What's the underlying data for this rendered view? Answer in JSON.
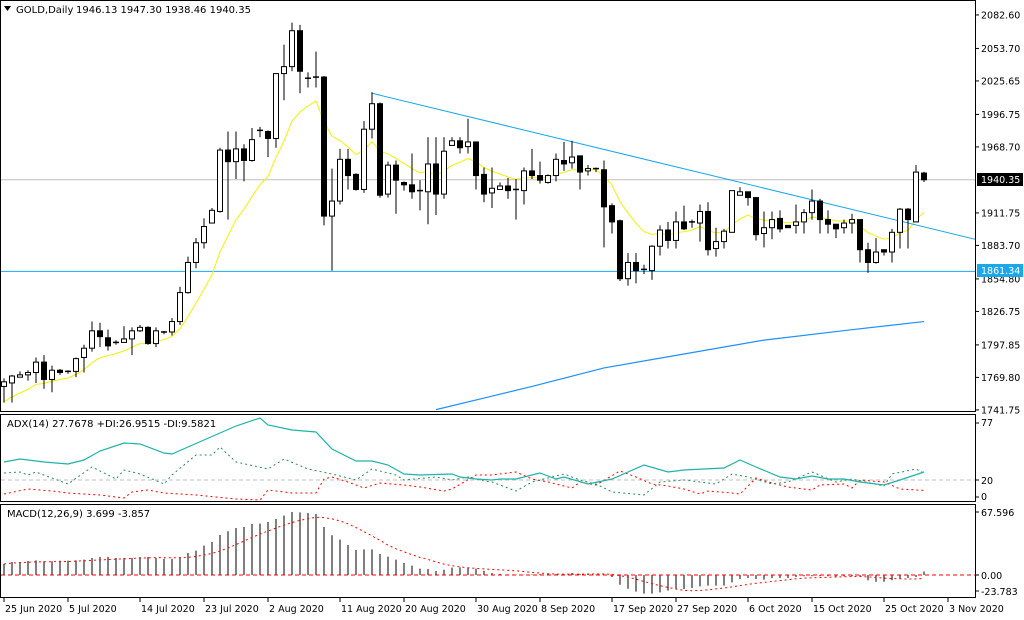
{
  "header": {
    "symbol": "GOLD,Daily",
    "ohlc": "1946.13 1947.30 1938.46 1940.35"
  },
  "colors": {
    "bull_fill": "#ffffff",
    "bear_fill": "#000000",
    "ma_fast": "#f2f200",
    "ma_slow": "#1e90ff",
    "trendline": "#1aa7ec",
    "level": "#1aa7ec",
    "bid_line": "#c0c0c0",
    "adx": "#20b2aa",
    "plus_di": "#2e8b57",
    "minus_di": "#ff0000",
    "macd_hist": "#000000",
    "macd_signal": "#ff0000"
  },
  "price_axis": {
    "labels": [
      "2082.60",
      "2053.70",
      "2025.65",
      "1996.75",
      "1968.70",
      "1911.75",
      "1883.70",
      "1854.80",
      "1826.75",
      "1797.85",
      "1769.80",
      "1741.75"
    ]
  },
  "price_tags": {
    "bid": "1940.35",
    "level": "1861.34"
  },
  "date_axis": [
    {
      "label": "25 Jun 2020",
      "bar": 0
    },
    {
      "label": "5 Jul 2020",
      "bar": 8
    },
    {
      "label": "14 Jul 2020",
      "bar": 17
    },
    {
      "label": "23 Jul 2020",
      "bar": 25
    },
    {
      "label": "2 Aug 2020",
      "bar": 33
    },
    {
      "label": "11 Aug 2020",
      "bar": 42
    },
    {
      "label": "20 Aug 2020",
      "bar": 50
    },
    {
      "label": "30 Aug 2020",
      "bar": 59
    },
    {
      "label": "8 Sep 2020",
      "bar": 67
    },
    {
      "label": "17 Sep 2020",
      "bar": 76
    },
    {
      "label": "27 Sep 2020",
      "bar": 84
    },
    {
      "label": "6 Oct 2020",
      "bar": 93
    },
    {
      "label": "15 Oct 2020",
      "bar": 101
    },
    {
      "label": "25 Oct 2020",
      "bar": 110
    },
    {
      "label": "3 Nov 2020",
      "bar": 118
    }
  ],
  "adx": {
    "label": "ADX(14) 27.7678 +DI:26.9515 -DI:9.5821",
    "axis": [
      "77",
      "20",
      "0"
    ],
    "level": 20,
    "adx": [
      [
        0,
        38
      ],
      [
        2,
        41
      ],
      [
        5,
        38
      ],
      [
        8,
        36
      ],
      [
        10,
        40
      ],
      [
        12,
        49
      ],
      [
        15,
        57
      ],
      [
        17,
        56
      ],
      [
        20,
        47
      ],
      [
        21,
        46
      ],
      [
        23,
        53
      ],
      [
        29,
        74
      ],
      [
        32,
        82
      ],
      [
        33,
        75
      ],
      [
        36,
        70
      ],
      [
        39,
        68
      ],
      [
        41,
        51
      ],
      [
        44,
        39
      ],
      [
        46,
        39
      ],
      [
        48,
        35
      ],
      [
        50,
        26
      ],
      [
        52,
        25
      ],
      [
        56,
        26
      ],
      [
        57,
        23
      ],
      [
        59,
        21
      ],
      [
        61,
        20
      ],
      [
        62,
        21
      ],
      [
        64,
        21
      ],
      [
        67,
        27
      ],
      [
        69,
        21
      ],
      [
        70,
        23
      ],
      [
        73,
        16
      ],
      [
        76,
        21
      ],
      [
        80,
        35
      ],
      [
        83,
        28
      ],
      [
        85,
        30
      ],
      [
        90,
        32
      ],
      [
        92,
        40
      ],
      [
        94,
        33
      ],
      [
        97,
        23
      ],
      [
        99,
        21
      ],
      [
        101,
        24
      ],
      [
        103,
        21
      ],
      [
        105,
        21
      ],
      [
        107,
        18
      ],
      [
        110,
        15
      ],
      [
        112,
        20
      ],
      [
        115,
        28
      ]
    ],
    "plus_di": [
      [
        0,
        27
      ],
      [
        2,
        28
      ],
      [
        3,
        25
      ],
      [
        4,
        28
      ],
      [
        8,
        16
      ],
      [
        11,
        33
      ],
      [
        14,
        21
      ],
      [
        15,
        30
      ],
      [
        17,
        26
      ],
      [
        20,
        16
      ],
      [
        21,
        25
      ],
      [
        24,
        45
      ],
      [
        26,
        45
      ],
      [
        27,
        53
      ],
      [
        29,
        38
      ],
      [
        33,
        31
      ],
      [
        35,
        41
      ],
      [
        38,
        31
      ],
      [
        41,
        26
      ],
      [
        44,
        20
      ],
      [
        46,
        31
      ],
      [
        49,
        25
      ],
      [
        50,
        20
      ],
      [
        54,
        23
      ],
      [
        56,
        20
      ],
      [
        58,
        23
      ],
      [
        60,
        19
      ],
      [
        61,
        18
      ],
      [
        64,
        9
      ],
      [
        66,
        18
      ],
      [
        70,
        26
      ],
      [
        72,
        20
      ],
      [
        74,
        16
      ],
      [
        76,
        8
      ],
      [
        80,
        5
      ],
      [
        82,
        18
      ],
      [
        85,
        20
      ],
      [
        89,
        16
      ],
      [
        91,
        26
      ],
      [
        93,
        23
      ],
      [
        96,
        16
      ],
      [
        98,
        18
      ],
      [
        101,
        28
      ],
      [
        104,
        18
      ],
      [
        106,
        21
      ],
      [
        110,
        14
      ],
      [
        111,
        26
      ],
      [
        114,
        31
      ],
      [
        115,
        27
      ]
    ],
    "minus_di": [
      [
        0,
        6
      ],
      [
        3,
        11
      ],
      [
        6,
        9
      ],
      [
        8,
        7
      ],
      [
        12,
        5
      ],
      [
        15,
        2
      ],
      [
        16,
        8
      ],
      [
        18,
        10
      ],
      [
        20,
        7
      ],
      [
        24,
        5
      ],
      [
        29,
        1
      ],
      [
        32,
        0
      ],
      [
        33,
        10
      ],
      [
        36,
        7
      ],
      [
        39,
        7
      ],
      [
        40,
        21
      ],
      [
        41,
        23
      ],
      [
        43,
        18
      ],
      [
        45,
        12
      ],
      [
        47,
        17
      ],
      [
        50,
        15
      ],
      [
        52,
        13
      ],
      [
        55,
        9
      ],
      [
        56,
        11
      ],
      [
        59,
        25
      ],
      [
        61,
        25
      ],
      [
        64,
        28
      ],
      [
        66,
        21
      ],
      [
        68,
        18
      ],
      [
        71,
        12
      ],
      [
        72,
        18
      ],
      [
        74,
        15
      ],
      [
        77,
        29
      ],
      [
        79,
        23
      ],
      [
        81,
        16
      ],
      [
        83,
        14
      ],
      [
        85,
        11
      ],
      [
        87,
        6
      ],
      [
        88,
        9
      ],
      [
        91,
        7
      ],
      [
        92,
        6
      ],
      [
        94,
        22
      ],
      [
        96,
        17
      ],
      [
        98,
        13
      ],
      [
        100,
        11
      ],
      [
        101,
        10
      ],
      [
        102,
        15
      ],
      [
        105,
        16
      ],
      [
        106,
        12
      ],
      [
        107,
        20
      ],
      [
        110,
        18
      ],
      [
        112,
        11
      ],
      [
        115,
        9.6
      ]
    ]
  },
  "macd": {
    "label": "MACD(12,26,9) 3.699 -3.857",
    "axis": [
      "67.596",
      "0.00",
      "-23.783"
    ],
    "signal_period": 9,
    "hist": [
      11.8,
      13.9,
      13.9,
      15.0,
      15.7,
      14.7,
      14.7,
      15.4,
      15.4,
      15.7,
      16.5,
      18.2,
      19.3,
      19.3,
      18.2,
      18.2,
      18.2,
      19.3,
      19.3,
      18.2,
      17.5,
      17.5,
      19.3,
      23.6,
      26.1,
      31.5,
      35.4,
      42.9,
      46.9,
      50.4,
      51.5,
      54.7,
      55.1,
      56.9,
      60.1,
      63.7,
      67.6,
      67.2,
      66.5,
      65.4,
      51.5,
      42.6,
      38.0,
      32.2,
      26.8,
      27.5,
      27.5,
      22.5,
      19.7,
      16.5,
      12.9,
      10.0,
      6.8,
      6.4,
      4.3,
      5.7,
      7.9,
      8.2,
      7.9,
      6.8,
      4.6,
      2.1,
      1.4,
      0.7,
      0.5,
      0.3,
      0.5,
      1.0,
      1.4,
      1.0,
      1.0,
      2.1,
      1.0,
      1.0,
      0.5,
      0.3,
      -2.1,
      -10.4,
      -14.7,
      -17.9,
      -20.0,
      -20.0,
      -18.6,
      -16.8,
      -15.0,
      -15.0,
      -14.0,
      -12.2,
      -11.4,
      -11.4,
      -11.4,
      -7.9,
      -4.3,
      -3.2,
      -4.3,
      -5.0,
      -3.2,
      -3.2,
      -3.2,
      -2.1,
      -1.4,
      -1.4,
      -1.4,
      -1.4,
      -2.1,
      -1.4,
      -1.4,
      -2.1,
      -5.7,
      -7.2,
      -7.2,
      -5.7,
      -4.3,
      -3.2,
      -2.1,
      3.699
    ]
  },
  "chart_data": {
    "type": "candlestick",
    "title": "GOLD,Daily",
    "ylim": [
      1741.75,
      2082.6
    ],
    "ohlc_order": [
      "open",
      "high",
      "low",
      "close"
    ],
    "candles": [
      [
        1762,
        1769,
        1748,
        1766
      ],
      [
        1765,
        1772,
        1748,
        1771
      ],
      [
        1770,
        1775,
        1770,
        1772
      ],
      [
        1772,
        1776,
        1767,
        1774
      ],
      [
        1774,
        1787,
        1765,
        1783
      ],
      [
        1783,
        1789,
        1760,
        1768
      ],
      [
        1768,
        1780,
        1757,
        1776
      ],
      [
        1776,
        1777,
        1772,
        1774
      ],
      [
        1774,
        1776,
        1773,
        1775
      ],
      [
        1775,
        1787,
        1770,
        1786
      ],
      [
        1787,
        1798,
        1774,
        1795
      ],
      [
        1795,
        1818,
        1792,
        1810
      ],
      [
        1810,
        1817,
        1796,
        1805
      ],
      [
        1804,
        1811,
        1793,
        1797
      ],
      [
        1800,
        1802,
        1798,
        1799
      ],
      [
        1800,
        1814,
        1800,
        1803
      ],
      [
        1803,
        1813,
        1789,
        1810
      ],
      [
        1810,
        1815,
        1809,
        1813
      ],
      [
        1813,
        1814,
        1798,
        1799
      ],
      [
        1799,
        1813,
        1796,
        1810
      ],
      [
        1809,
        1810,
        1807,
        1808
      ],
      [
        1809,
        1821,
        1806,
        1818
      ],
      [
        1818,
        1848,
        1815,
        1843
      ],
      [
        1843,
        1874,
        1842,
        1869
      ],
      [
        1869,
        1890,
        1864,
        1886
      ],
      [
        1886,
        1907,
        1881,
        1900
      ],
      [
        1903,
        1916,
        1903,
        1914
      ],
      [
        1913,
        1968,
        1912,
        1966
      ],
      [
        1966,
        1982,
        1906,
        1956
      ],
      [
        1956,
        1982,
        1941,
        1967
      ],
      [
        1967,
        1971,
        1939,
        1957
      ],
      [
        1957,
        1985,
        1956,
        1975
      ],
      [
        1983,
        1986,
        1977,
        1982
      ],
      [
        1982,
        1983,
        1960,
        1976
      ],
      [
        1976,
        2032,
        1968,
        2032
      ],
      [
        2032,
        2057,
        2009,
        2038
      ],
      [
        2038,
        2076,
        2034,
        2069
      ],
      [
        2069,
        2074,
        2015,
        2034
      ],
      [
        2028,
        2033,
        2020,
        2027
      ],
      [
        2029,
        2051,
        2020,
        2028
      ],
      [
        2029,
        2030,
        1901,
        1909
      ],
      [
        1909,
        1950,
        1862,
        1922
      ],
      [
        1922,
        1967,
        1919,
        1958
      ],
      [
        1958,
        1967,
        1932,
        1944
      ],
      [
        1945,
        1946,
        1931,
        1932
      ],
      [
        1932,
        1991,
        1929,
        1984
      ],
      [
        1984,
        2016,
        1976,
        2006
      ],
      [
        2006,
        2007,
        1925,
        1927
      ],
      [
        1928,
        1956,
        1925,
        1953
      ],
      [
        1953,
        1957,
        1911,
        1940
      ],
      [
        1938,
        1939,
        1931,
        1936
      ],
      [
        1936,
        1963,
        1924,
        1930
      ],
      [
        1931,
        1940,
        1914,
        1930
      ],
      [
        1930,
        1977,
        1902,
        1954
      ],
      [
        1954,
        1977,
        1910,
        1928
      ],
      [
        1928,
        1977,
        1924,
        1965
      ],
      [
        1970,
        1977,
        1970,
        1974
      ],
      [
        1974,
        1977,
        1963,
        1968
      ],
      [
        1969,
        1993,
        1963,
        1973
      ],
      [
        1973,
        1973,
        1932,
        1944
      ],
      [
        1945,
        1951,
        1921,
        1928
      ],
      [
        1929,
        1951,
        1916,
        1933
      ],
      [
        1932,
        1938,
        1932,
        1935
      ],
      [
        1935,
        1942,
        1924,
        1931
      ],
      [
        1932,
        1941,
        1906,
        1931
      ],
      [
        1931,
        1951,
        1919,
        1948
      ],
      [
        1948,
        1967,
        1941,
        1944
      ],
      [
        1944,
        1956,
        1937,
        1940
      ],
      [
        1938,
        1945,
        1937,
        1944
      ],
      [
        1944,
        1963,
        1939,
        1958
      ],
      [
        1957,
        1973,
        1948,
        1954
      ],
      [
        1955,
        1974,
        1950,
        1960
      ],
      [
        1961,
        1961,
        1932,
        1947
      ],
      [
        1948,
        1953,
        1944,
        1950
      ],
      [
        1950,
        1951,
        1947,
        1949
      ],
      [
        1949,
        1957,
        1882,
        1917
      ],
      [
        1918,
        1920,
        1894,
        1904
      ],
      [
        1905,
        1906,
        1853,
        1855
      ],
      [
        1855,
        1877,
        1849,
        1869
      ],
      [
        1869,
        1877,
        1851,
        1862
      ],
      [
        1863,
        1867,
        1859,
        1863
      ],
      [
        1862,
        1884,
        1854,
        1883
      ],
      [
        1883,
        1901,
        1875,
        1897
      ],
      [
        1897,
        1904,
        1881,
        1888
      ],
      [
        1888,
        1913,
        1881,
        1904
      ],
      [
        1904,
        1918,
        1897,
        1898
      ],
      [
        1904,
        1906,
        1899,
        1904
      ],
      [
        1903,
        1919,
        1887,
        1913
      ],
      [
        1913,
        1921,
        1875,
        1880
      ],
      [
        1881,
        1899,
        1874,
        1887
      ],
      [
        1887,
        1898,
        1881,
        1896
      ],
      [
        1895,
        1931,
        1895,
        1931
      ],
      [
        1927,
        1934,
        1927,
        1930
      ],
      [
        1930,
        1930,
        1918,
        1925
      ],
      [
        1925,
        1925,
        1888,
        1893
      ],
      [
        1894,
        1913,
        1882,
        1899
      ],
      [
        1899,
        1913,
        1889,
        1906
      ],
      [
        1907,
        1914,
        1895,
        1898
      ],
      [
        1901,
        1901,
        1899,
        1899
      ],
      [
        1901,
        1919,
        1894,
        1904
      ],
      [
        1904,
        1915,
        1894,
        1912
      ],
      [
        1912,
        1932,
        1906,
        1922
      ],
      [
        1922,
        1924,
        1894,
        1906
      ],
      [
        1906,
        1914,
        1894,
        1902
      ],
      [
        1902,
        1902,
        1890,
        1898
      ],
      [
        1899,
        1906,
        1894,
        1903
      ],
      [
        1903,
        1911,
        1894,
        1906
      ],
      [
        1906,
        1906,
        1869,
        1880
      ],
      [
        1880,
        1886,
        1860,
        1869
      ],
      [
        1869,
        1890,
        1868,
        1878
      ],
      [
        1880,
        1880,
        1875,
        1878
      ],
      [
        1878,
        1898,
        1869,
        1895
      ],
      [
        1895,
        1916,
        1881,
        1915
      ],
      [
        1915,
        1916,
        1881,
        1906
      ],
      [
        1904,
        1953,
        1904,
        1947
      ],
      [
        1946.13,
        1947.3,
        1938.46,
        1940.35
      ]
    ],
    "ma_fast_period": 10,
    "ma_slow": [
      [
        54,
        1742
      ],
      [
        60,
        1752
      ],
      [
        66,
        1762
      ],
      [
        75,
        1778
      ],
      [
        85,
        1790
      ],
      [
        95,
        1802
      ],
      [
        106,
        1811
      ],
      [
        115,
        1818
      ]
    ],
    "trendline": [
      [
        46,
        2015
      ],
      [
        122,
        1888
      ]
    ],
    "horizontal_levels": [
      1940.35,
      1861.34
    ]
  }
}
